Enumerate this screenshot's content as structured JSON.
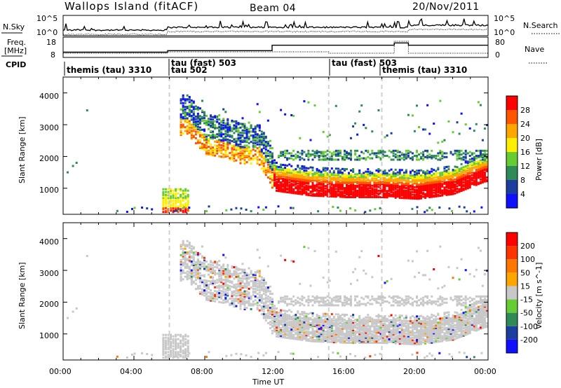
{
  "header": {
    "station": "Wallops Island (fitACF)",
    "beam": "Beam 04",
    "date": "20/Nov/2011"
  },
  "noise_panel": {
    "left_label": "N.Sky",
    "right_label": "N.Search",
    "tick_top": "10^5",
    "tick_bottom": "10^0"
  },
  "freq_panel": {
    "left_label_1": "Freq.",
    "left_label_2": "[MHz]",
    "right_label": "Nave",
    "left_ticks": [
      "18",
      "8"
    ],
    "right_ticks": [
      "80",
      "0"
    ]
  },
  "cpid_panel": {
    "label": "CPID",
    "modes": [
      {
        "name": "themis (tau) 3310",
        "start": 0.0
      },
      {
        "name": "tau (fast) 503",
        "start": 5.9
      },
      {
        "name": "tau 502",
        "start": 5.9
      },
      {
        "name": "tau (fast) 503",
        "start": 15.0
      },
      {
        "name": "themis (tau) 3310",
        "start": 18.0
      }
    ]
  },
  "x_axis": {
    "label": "Time UT",
    "ticks": [
      "00:00",
      "04:00",
      "08:00",
      "12:00",
      "16:00",
      "20:00",
      "00:00"
    ]
  },
  "power_panel": {
    "y_label": "Slant Range [km]",
    "y_ticks": [
      "1000",
      "2000",
      "3000",
      "4000"
    ],
    "colorbar_label": "Power [dB]",
    "colorbar_ticks": [
      "4",
      "8",
      "12",
      "16",
      "20",
      "24",
      "28"
    ],
    "colors": [
      "#1010ff",
      "#1c3e9e",
      "#2e8b57",
      "#66cc33",
      "#ffee00",
      "#ffa500",
      "#ff5500",
      "#ff0000"
    ]
  },
  "velocity_panel": {
    "y_label": "Slant Range [km]",
    "y_ticks": [
      "1000",
      "2000",
      "3000",
      "4000"
    ],
    "colorbar_label": "Velocity [m s^-1]",
    "colorbar_ticks": [
      "200",
      "100",
      "50",
      "15",
      "-15",
      "-50",
      "-100",
      "-200"
    ],
    "colors": [
      "#1010ff",
      "#1c3e9e",
      "#2e8b57",
      "#66cc33",
      "#c8c8c8",
      "#ffa500",
      "#ff7700",
      "#ff3300",
      "#ff0000"
    ]
  },
  "chart_data": {
    "type": "heatmap",
    "x_range_hours": [
      0,
      24
    ],
    "y_range_km": [
      180,
      4500
    ],
    "transmitter_frequency_mhz": [
      {
        "from": 0,
        "to": 5.9,
        "value": 10.5
      },
      {
        "from": 5.9,
        "to": 11.8,
        "value": 11.5
      },
      {
        "from": 11.8,
        "to": 18.7,
        "value": 15.0
      },
      {
        "from": 18.7,
        "to": 19.5,
        "value": 16.5
      },
      {
        "from": 19.5,
        "to": 24,
        "value": 15.0
      }
    ],
    "ionospheric_band_center_km": [
      [
        7.0,
        3200
      ],
      [
        8.0,
        2600
      ],
      [
        9.0,
        2500
      ],
      [
        10.0,
        2300
      ],
      [
        11.0,
        2300
      ],
      [
        12.0,
        1300
      ],
      [
        14.0,
        1150
      ],
      [
        16.0,
        1100
      ],
      [
        18.0,
        1100
      ],
      [
        20.0,
        1050
      ],
      [
        22.0,
        1200
      ],
      [
        23.8,
        1600
      ]
    ]
  }
}
